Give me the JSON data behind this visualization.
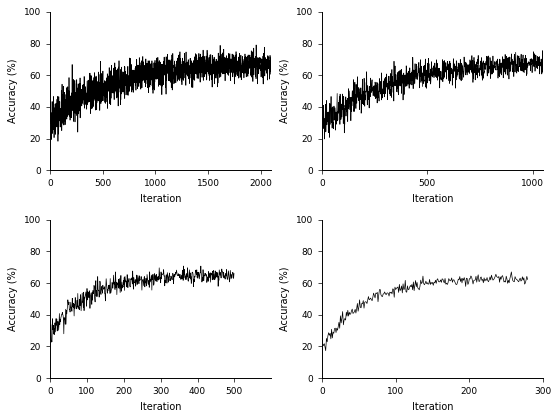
{
  "subplots": [
    {
      "n_iter": 2100,
      "xlim": [
        0,
        2100
      ],
      "xticks": [
        0,
        500,
        1000,
        1500,
        2000
      ],
      "start_acc": 32,
      "end_acc": 68,
      "noise_scale": 7,
      "decay": 0.3,
      "seed": 42
    },
    {
      "n_iter": 1050,
      "xlim": [
        0,
        1050
      ],
      "xticks": [
        0,
        500,
        1000
      ],
      "start_acc": 28,
      "end_acc": 68,
      "noise_scale": 6,
      "decay": 0.28,
      "seed": 43
    },
    {
      "n_iter": 500,
      "xlim": [
        0,
        600
      ],
      "xticks": [
        0,
        100,
        200,
        300,
        400,
        500
      ],
      "start_acc": 28,
      "end_acc": 65,
      "noise_scale": 4,
      "decay": 0.2,
      "seed": 44
    },
    {
      "n_iter": 280,
      "xlim": [
        0,
        300
      ],
      "xticks": [
        0,
        100,
        200,
        300
      ],
      "start_acc": 20,
      "end_acc": 63,
      "noise_scale": 2.5,
      "decay": 0.2,
      "seed": 45
    }
  ],
  "ylabel": "Accuracy (%)",
  "xlabel": "Iteration",
  "ylim": [
    0,
    100
  ],
  "yticks": [
    0,
    20,
    40,
    60,
    80,
    100
  ],
  "line_color": "#000000",
  "linewidth": 0.5,
  "bg_color": "#ffffff",
  "label_fontsize": 7,
  "tick_fontsize": 6.5
}
